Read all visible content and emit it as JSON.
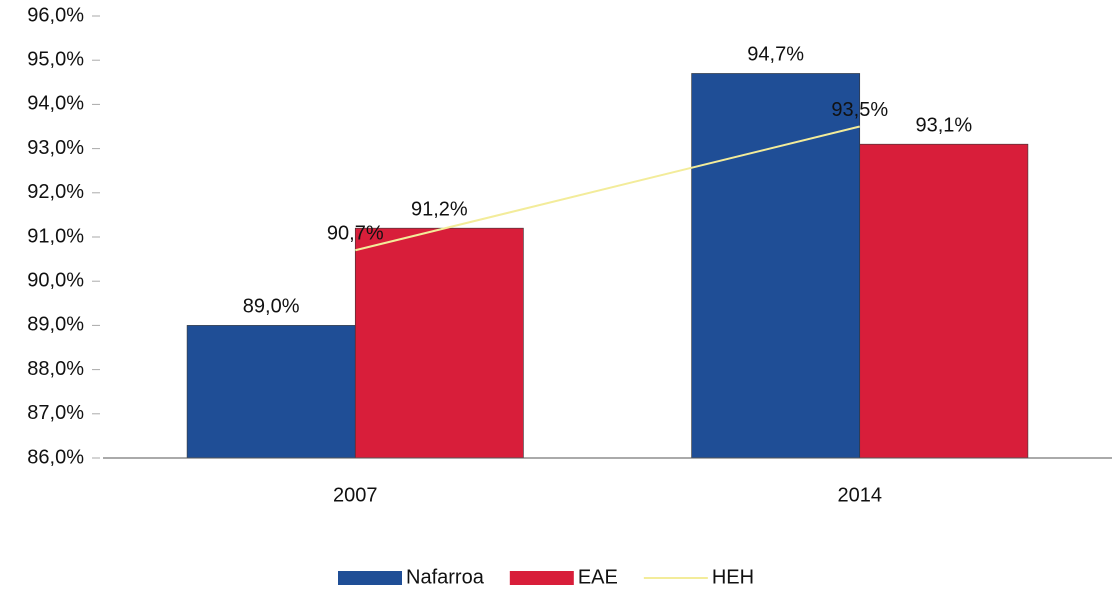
{
  "chart_data": {
    "type": "bar",
    "categories": [
      "2007",
      "2014"
    ],
    "series": [
      {
        "name": "Nafarroa",
        "color": "#1f4e96",
        "values": [
          89.0,
          94.7
        ],
        "value_labels": [
          "89,0%",
          "94,7%"
        ]
      },
      {
        "name": "EAE",
        "color": "#d81e3a",
        "values": [
          91.2,
          93.1
        ],
        "value_labels": [
          "91,2%",
          "93,1%"
        ]
      },
      {
        "name": "HEH",
        "type": "line",
        "color": "#f3ec9a",
        "values": [
          90.7,
          93.5
        ],
        "value_labels": [
          "90,7%",
          "93,5%"
        ]
      }
    ],
    "ylim": [
      86,
      96
    ],
    "yticks": [
      {
        "value": 86,
        "label": "86,0%"
      },
      {
        "value": 87,
        "label": "87,0%"
      },
      {
        "value": 88,
        "label": "88,0%"
      },
      {
        "value": 89,
        "label": "89,0%"
      },
      {
        "value": 90,
        "label": "90,0%"
      },
      {
        "value": 91,
        "label": "91,0%"
      },
      {
        "value": 92,
        "label": "92,0%"
      },
      {
        "value": 93,
        "label": "93,0%"
      },
      {
        "value": 94,
        "label": "94,0%"
      },
      {
        "value": 95,
        "label": "95,0%"
      },
      {
        "value": 96,
        "label": "96,0%"
      }
    ],
    "legend": "bottom"
  }
}
